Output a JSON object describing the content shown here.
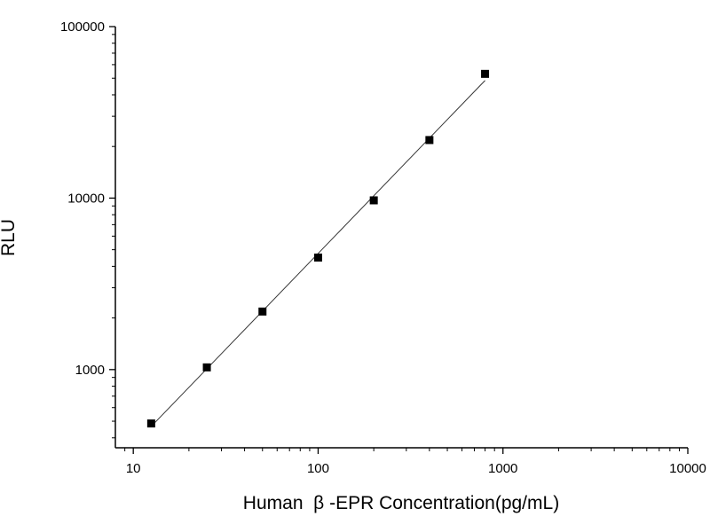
{
  "chart_data": {
    "type": "scatter",
    "xlabel": "Human  β -EPR Concentration(pg/mL)",
    "ylabel": "RLU",
    "x_scale": "log",
    "y_scale": "log",
    "xlim": [
      8,
      10000
    ],
    "ylim": [
      350,
      100000
    ],
    "x_ticks": [
      10,
      100,
      1000,
      10000
    ],
    "x_tick_labels": [
      "10",
      "100",
      "1000",
      "10000"
    ],
    "y_ticks": [
      1000,
      10000,
      100000
    ],
    "y_tick_labels": [
      "1000",
      "10000",
      "100000"
    ],
    "grid": false,
    "legend": "none",
    "series": [
      {
        "x": [
          12.5,
          25,
          50,
          100,
          200,
          400,
          800
        ],
        "y": [
          485,
          1030,
          2180,
          4500,
          9700,
          21800,
          53000
        ],
        "marker": "square",
        "fit_line": true
      }
    ]
  }
}
